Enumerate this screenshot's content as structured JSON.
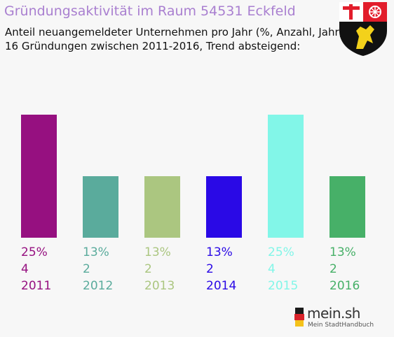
{
  "header": {
    "title": "Gründungsaktivität im Raum 54531 Eckfeld",
    "subtitle_line1": "Anteil neuangemeldeter Unternehmen pro Jahr (%, Anzahl, Jahr)",
    "subtitle_line2": "16 Gründungen zwischen 2011-2016, Trend absteigend:"
  },
  "crest": {
    "icon": "rhineland-palatinate-coat-of-arms-icon"
  },
  "chart_data": {
    "type": "bar",
    "categories": [
      "2011",
      "2012",
      "2013",
      "2014",
      "2015",
      "2016"
    ],
    "values": [
      4,
      2,
      2,
      2,
      4,
      2
    ],
    "percent_labels": [
      "25%",
      "13%",
      "13%",
      "13%",
      "25%",
      "13%"
    ],
    "count_labels": [
      "4",
      "2",
      "2",
      "2",
      "4",
      "2"
    ],
    "colors": [
      "#961080",
      "#5aab9c",
      "#abc680",
      "#2a09e6",
      "#82f6e8",
      "#47b068"
    ],
    "ylim": [
      0,
      4
    ],
    "grid": false,
    "legend": "none"
  },
  "branding": {
    "name": "mein.sh",
    "tagline": "Mein StadtHandbuch",
    "icon": "germany-map-icon"
  }
}
